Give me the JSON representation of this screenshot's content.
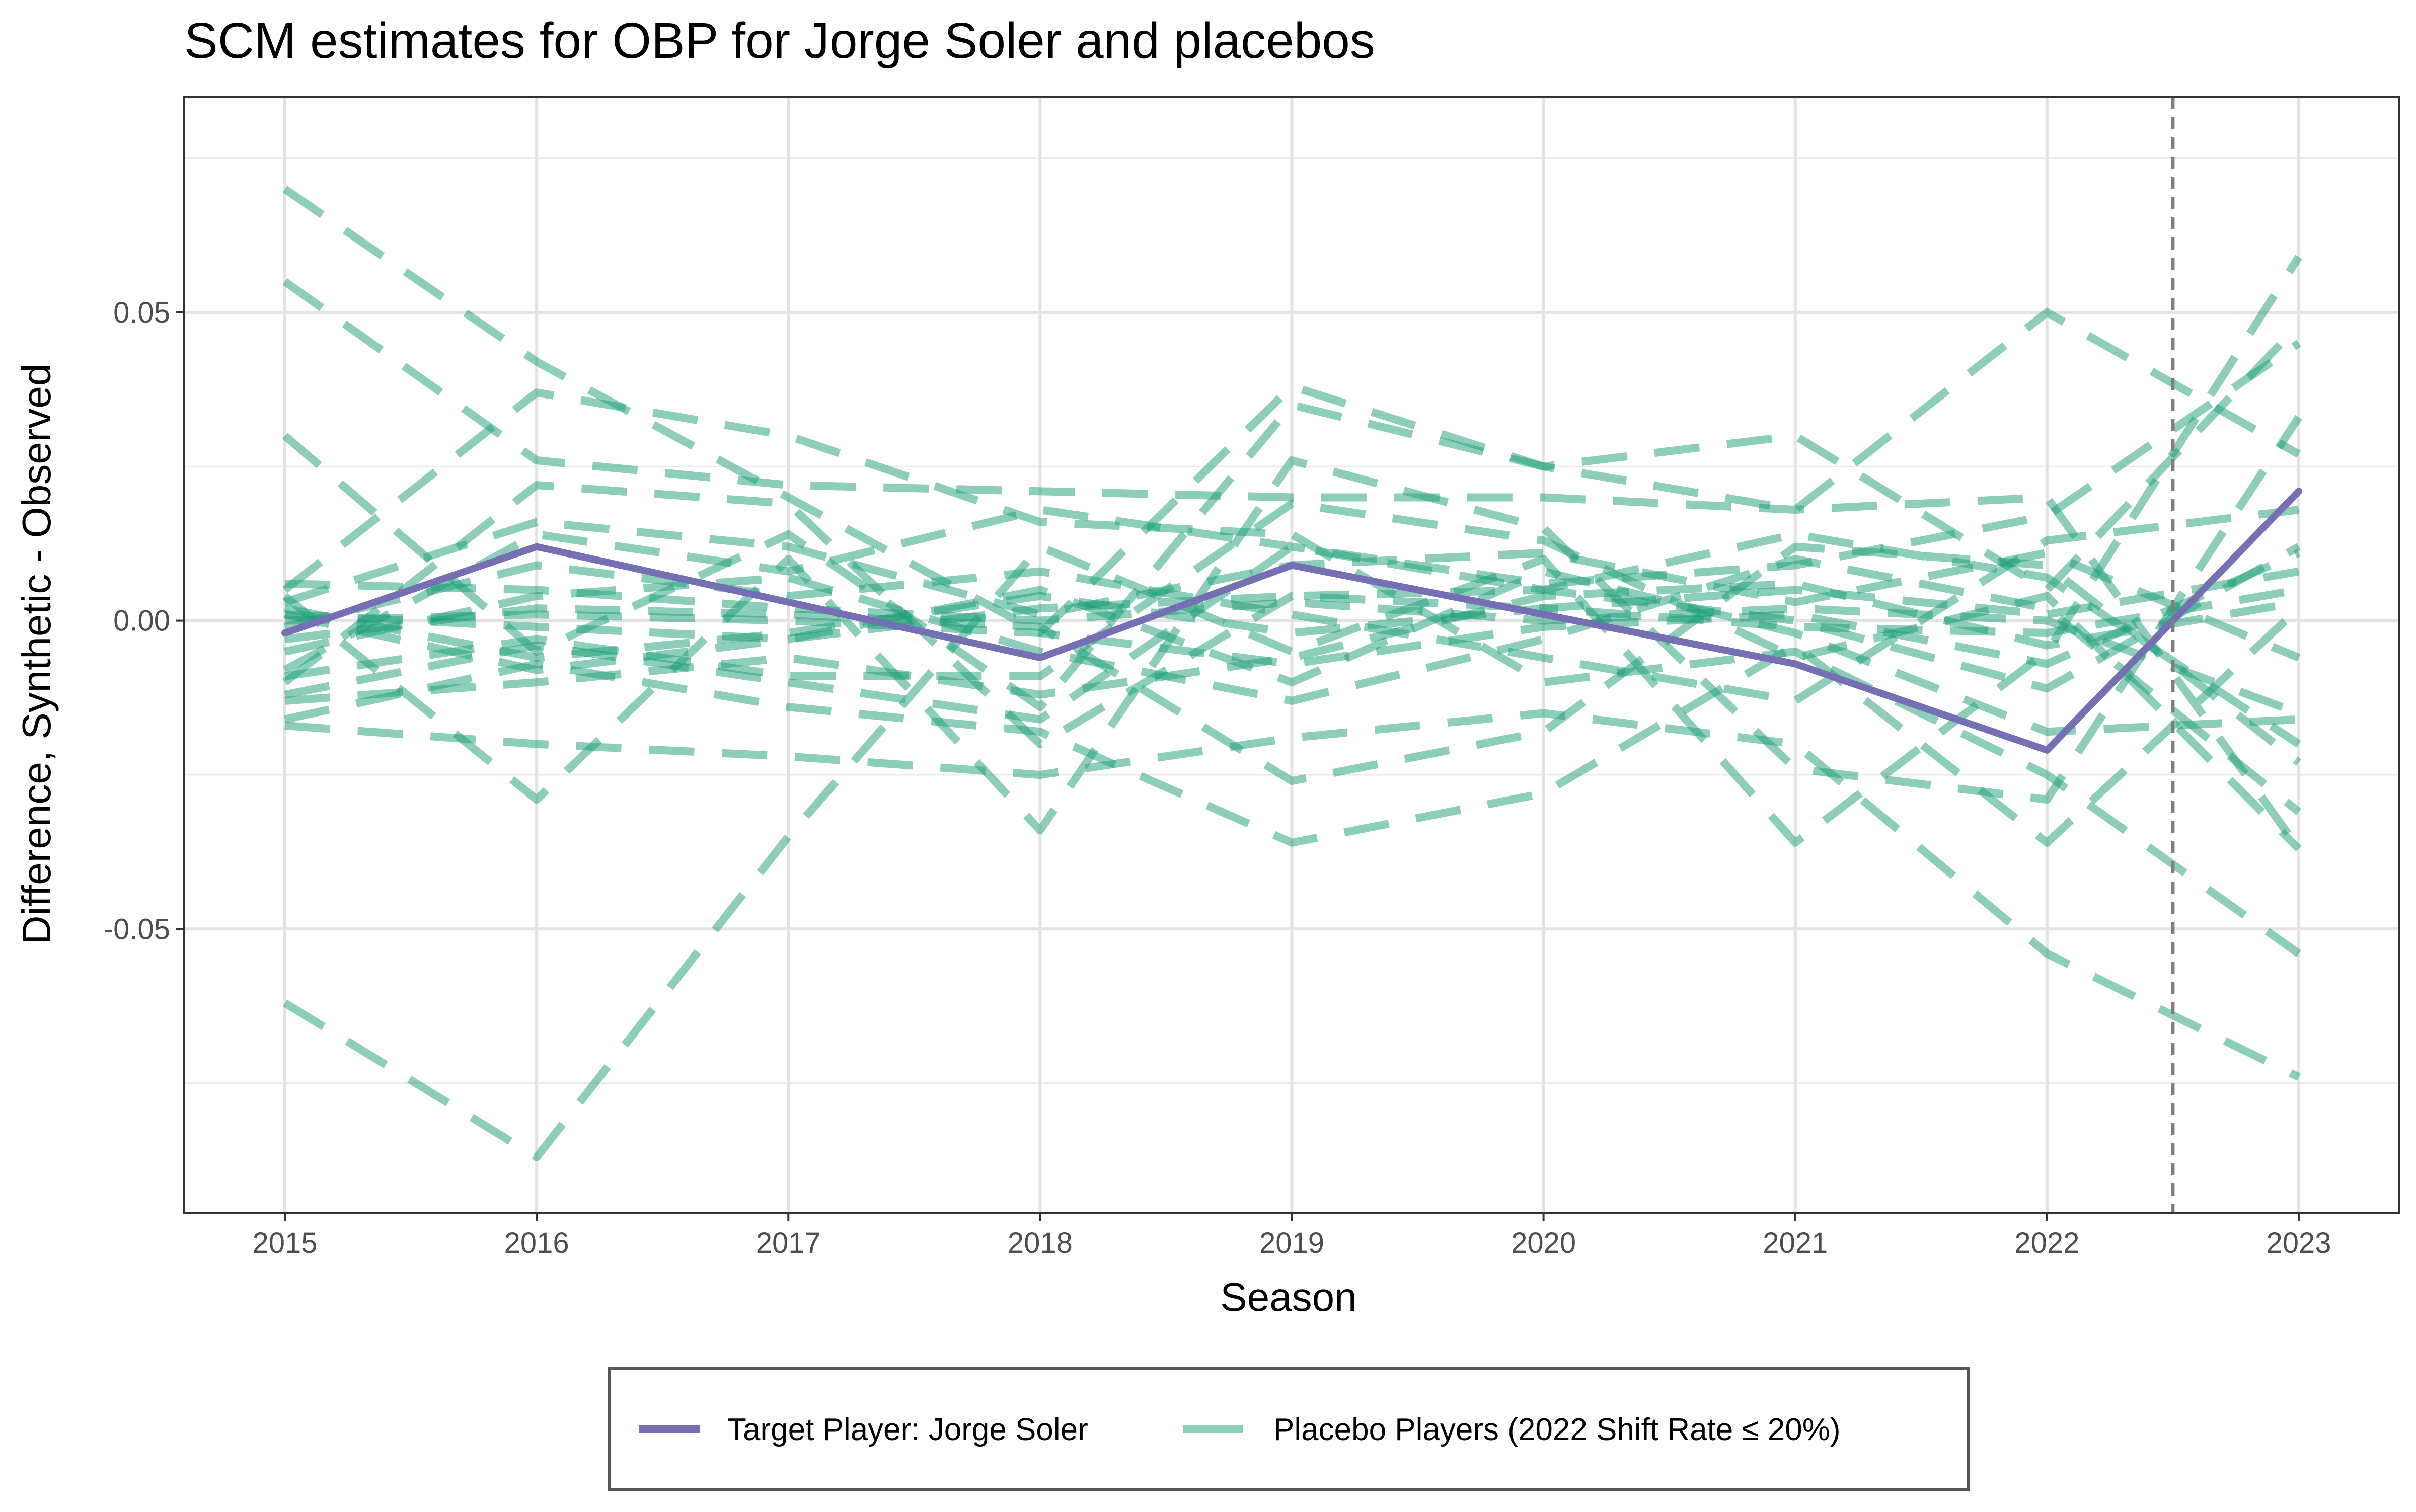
{
  "chart_data": {
    "type": "line",
    "title": "SCM estimates for OBP for Jorge Soler and placebos",
    "xlabel": "Season",
    "ylabel": "Difference, Synthetic - Observed",
    "x": [
      2015,
      2016,
      2017,
      2018,
      2019,
      2020,
      2021,
      2022,
      2023
    ],
    "xlim": [
      2014.6,
      2023.4
    ],
    "ylim": [
      -0.096,
      0.085
    ],
    "y_ticks": [
      -0.05,
      0.0,
      0.05
    ],
    "y_tick_labels": [
      "-0.05",
      "0.00",
      "0.05"
    ],
    "x_tick_labels": [
      "2015",
      "2016",
      "2017",
      "2018",
      "2019",
      "2020",
      "2021",
      "2022",
      "2023"
    ],
    "grid": true,
    "treatment_line_x": 2022.5,
    "legend_position": "bottom",
    "colors": {
      "target": "#7570b3",
      "placebo": "#1b9e77",
      "treatment_line": "#7f7f7f"
    },
    "series": [
      {
        "name": "Target Player: Jorge Soler",
        "values": [
          -0.002,
          0.012,
          0.003,
          -0.006,
          0.009,
          0.001,
          -0.007,
          -0.021,
          0.021
        ]
      }
    ],
    "placebo_series": [
      [
        0.07,
        0.042,
        0.02,
        -0.002,
        0.038,
        0.025,
        0.03,
        0.005,
        0.048
      ],
      [
        0.055,
        0.026,
        0.022,
        0.021,
        0.02,
        0.02,
        0.018,
        0.02,
        -0.037
      ],
      [
        0.03,
        -0.005,
        0.014,
        -0.014,
        0.035,
        0.025,
        0.018,
        0.05,
        0.027
      ],
      [
        0.005,
        0.037,
        0.03,
        0.016,
        0.014,
        -0.01,
        -0.005,
        -0.025,
        -0.054
      ],
      [
        -0.062,
        -0.087,
        -0.035,
        0.012,
        -0.005,
        0.01,
        -0.036,
        -0.005,
        0.059
      ],
      [
        -0.017,
        -0.02,
        -0.022,
        -0.025,
        -0.019,
        -0.015,
        -0.02,
        -0.054,
        -0.074
      ],
      [
        -0.01,
        0.022,
        0.019,
        -0.02,
        0.004,
        0.002,
        0.005,
        0.001,
        0.008
      ],
      [
        0.004,
        -0.029,
        0.01,
        -0.034,
        0.026,
        0.015,
        -0.024,
        -0.029,
        0.033
      ],
      [
        -0.012,
        -0.004,
        -0.01,
        -0.016,
        0.012,
        0.005,
        0.0,
        -0.011,
        0.012
      ],
      [
        0.006,
        0.005,
        0.002,
        0.0,
        0.003,
        0.0,
        0.002,
        0.0,
        -0.015
      ],
      [
        -0.008,
        0.014,
        0.008,
        0.018,
        0.012,
        0.006,
        0.009,
        0.017,
        0.045
      ],
      [
        -0.016,
        -0.007,
        -0.014,
        -0.018,
        -0.036,
        -0.028,
        -0.004,
        -0.036,
        0.002
      ],
      [
        0.001,
        -0.001,
        -0.003,
        0.002,
        0.004,
        0.005,
        0.014,
        0.007,
        -0.02
      ],
      [
        -0.005,
        0.004,
        0.007,
        -0.005,
        -0.013,
        -0.003,
        0.01,
        0.002,
        -0.031
      ],
      [
        -0.001,
        0.009,
        0.004,
        0.008,
        0.001,
        -0.006,
        -0.013,
        0.013,
        0.018
      ],
      [
        -0.013,
        -0.01,
        -0.006,
        -0.012,
        -0.006,
        0.004,
        0.006,
        -0.004,
        0.003
      ],
      [
        0.003,
        0.016,
        0.012,
        0.001,
        0.009,
        0.011,
        0.003,
        0.011,
        -0.006
      ],
      [
        -0.009,
        -0.003,
        -0.009,
        -0.009,
        0.019,
        0.013,
        -0.006,
        0.004,
        -0.037
      ],
      [
        0.0,
        0.001,
        0.0,
        -0.002,
        -0.007,
        -0.001,
        0.001,
        -0.007,
        0.011
      ],
      [
        0.002,
        -0.006,
        -0.002,
        0.004,
        -0.002,
        0.002,
        -0.001,
        -0.002,
        0.005
      ],
      [
        -0.003,
        0.002,
        0.001,
        -0.001,
        -0.026,
        -0.018,
        0.012,
        0.009,
        -0.023
      ],
      [
        0.001,
        -0.008,
        -0.003,
        0.005,
        -0.01,
        0.008,
        -0.002,
        -0.018,
        -0.016
      ]
    ]
  },
  "legend": {
    "target_label": "Target Player: Jorge Soler",
    "placebo_label": "Placebo Players (2022 Shift Rate ≤ 20%)"
  }
}
